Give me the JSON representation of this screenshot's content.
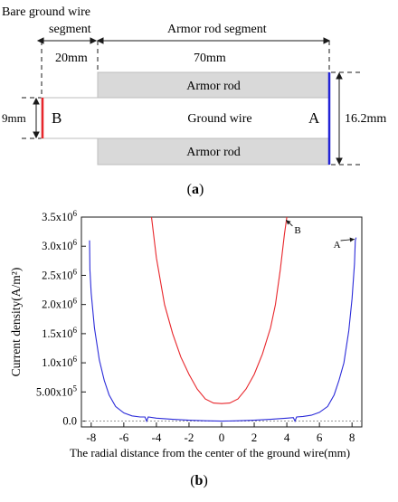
{
  "diagram_a": {
    "bare_label_line1": "Bare ground wire",
    "bare_label_line2": "segment",
    "armor_segment_label": "Armor rod segment",
    "dim_bare": "20mm",
    "dim_armor": "70mm",
    "armor_rod_top": "Armor rod",
    "armor_rod_bottom": "Armor rod",
    "ground_wire": "Ground wire",
    "end_b": "B",
    "end_a": "A",
    "dim_diameter_wire": "9mm",
    "dim_diameter_armor": "16.2mm",
    "caption": "a",
    "colors": {
      "rod_fill": "#d9d9d9",
      "end_b": "#e8262b",
      "end_a": "#2323d6"
    }
  },
  "chart_data": {
    "type": "line",
    "caption": "b",
    "xlabel": "The radial distance from the center of the ground wire(mm)",
    "ylabel": "Current density(A/m²)",
    "xlim": [
      -8.6,
      8.6
    ],
    "ylim": [
      -0.1,
      3.5
    ],
    "x_ticks": [
      -8,
      -6,
      -4,
      -2,
      0,
      2,
      4,
      6,
      8
    ],
    "y_ticks": [
      {
        "v": 0.0,
        "mant": "0.0",
        "exp": ""
      },
      {
        "v": 0.5,
        "mant": "5.00x10",
        "exp": "5"
      },
      {
        "v": 1.0,
        "mant": "1.0x10",
        "exp": "6"
      },
      {
        "v": 1.5,
        "mant": "1.5x10",
        "exp": "6"
      },
      {
        "v": 2.0,
        "mant": "2.0x10",
        "exp": "6"
      },
      {
        "v": 2.5,
        "mant": "2.5x10",
        "exp": "6"
      },
      {
        "v": 3.0,
        "mant": "3.0x10",
        "exp": "6"
      },
      {
        "v": 3.5,
        "mant": "3.5x10",
        "exp": "6"
      }
    ],
    "y_unit_scale": 1000000,
    "series": [
      {
        "name": "A",
        "color": "#2b2bd9",
        "points": [
          [
            -8.1,
            3.1
          ],
          [
            -8.08,
            2.6
          ],
          [
            -8.0,
            2.2
          ],
          [
            -7.8,
            1.6
          ],
          [
            -7.5,
            1.05
          ],
          [
            -7.2,
            0.7
          ],
          [
            -6.9,
            0.45
          ],
          [
            -6.5,
            0.25
          ],
          [
            -6.0,
            0.14
          ],
          [
            -5.5,
            0.09
          ],
          [
            -5.0,
            0.07
          ],
          [
            -4.7,
            0.07
          ],
          [
            -4.6,
            0.0
          ],
          [
            -4.5,
            0.07
          ],
          [
            -4.0,
            0.05
          ],
          [
            -3.0,
            0.03
          ],
          [
            -2.0,
            0.015
          ],
          [
            -1.0,
            0.005
          ],
          [
            0,
            0.0
          ],
          [
            1.0,
            0.005
          ],
          [
            2.0,
            0.015
          ],
          [
            3.0,
            0.03
          ],
          [
            4.0,
            0.05
          ],
          [
            4.4,
            0.06
          ],
          [
            4.5,
            0.0
          ],
          [
            4.6,
            0.07
          ],
          [
            5.0,
            0.08
          ],
          [
            5.5,
            0.1
          ],
          [
            6.0,
            0.15
          ],
          [
            6.5,
            0.25
          ],
          [
            6.9,
            0.45
          ],
          [
            7.2,
            0.7
          ],
          [
            7.5,
            1.0
          ],
          [
            7.8,
            1.55
          ],
          [
            8.0,
            2.1
          ],
          [
            8.15,
            2.7
          ],
          [
            8.2,
            3.1
          ],
          [
            8.25,
            3.15
          ]
        ]
      },
      {
        "name": "B",
        "color": "#e8262b",
        "points": [
          [
            -4.3,
            3.5
          ],
          [
            -4.0,
            2.8
          ],
          [
            -3.5,
            2.0
          ],
          [
            -3.0,
            1.5
          ],
          [
            -2.5,
            1.1
          ],
          [
            -2.0,
            0.8
          ],
          [
            -1.5,
            0.55
          ],
          [
            -1.0,
            0.38
          ],
          [
            -0.5,
            0.31
          ],
          [
            0,
            0.3
          ],
          [
            0.5,
            0.31
          ],
          [
            1.0,
            0.38
          ],
          [
            1.5,
            0.55
          ],
          [
            2.0,
            0.8
          ],
          [
            2.5,
            1.15
          ],
          [
            3.0,
            1.6
          ],
          [
            3.3,
            2.0
          ],
          [
            3.6,
            2.6
          ],
          [
            3.85,
            3.2
          ],
          [
            4.0,
            3.5
          ]
        ]
      }
    ],
    "annotations": [
      {
        "text": "B",
        "x": 4.35,
        "y": 3.3,
        "arrow_to": [
          3.95,
          3.45
        ]
      },
      {
        "text": "A",
        "x": 7.3,
        "y": 3.05,
        "arrow_to": [
          8.15,
          3.12
        ]
      }
    ],
    "zero_reference_line": true,
    "grid": false,
    "legend": "none"
  }
}
